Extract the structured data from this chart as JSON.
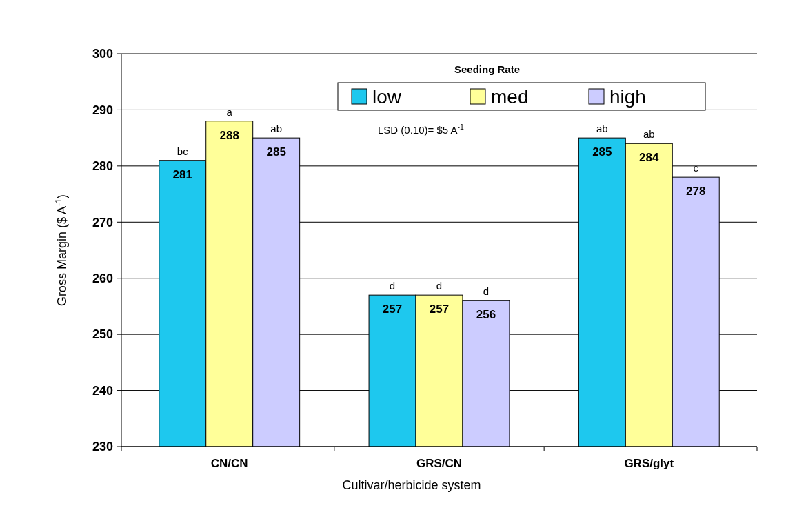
{
  "chart_data": {
    "type": "bar",
    "xlabel": "Cultivar/herbicide system",
    "ylabel": "Gross Margin ($ A$^{-1}$)",
    "legend_title": "Seeding Rate",
    "legend": "top",
    "grid": "y",
    "data_labels": true,
    "categories": [
      "CN/CN",
      "GRS/CN",
      "GRS/glyt"
    ],
    "series": [
      {
        "name": "low",
        "color": "#1ec8ee",
        "values": [
          281,
          257,
          285
        ]
      },
      {
        "name": "med",
        "color": "#ffff99",
        "values": [
          288,
          257,
          284
        ]
      },
      {
        "name": "high",
        "color": "#ccccff",
        "values": [
          285,
          256,
          278
        ]
      }
    ],
    "ylim": [
      230,
      300
    ],
    "yticks": [
      230,
      240,
      250,
      260,
      270,
      280,
      290,
      300
    ],
    "annotations": [
      "LSD (0.10)= $5 A$^{-1}$",
      "bc",
      "a",
      "ab",
      "d",
      "d",
      "d",
      "ab",
      "ab",
      "c"
    ]
  }
}
